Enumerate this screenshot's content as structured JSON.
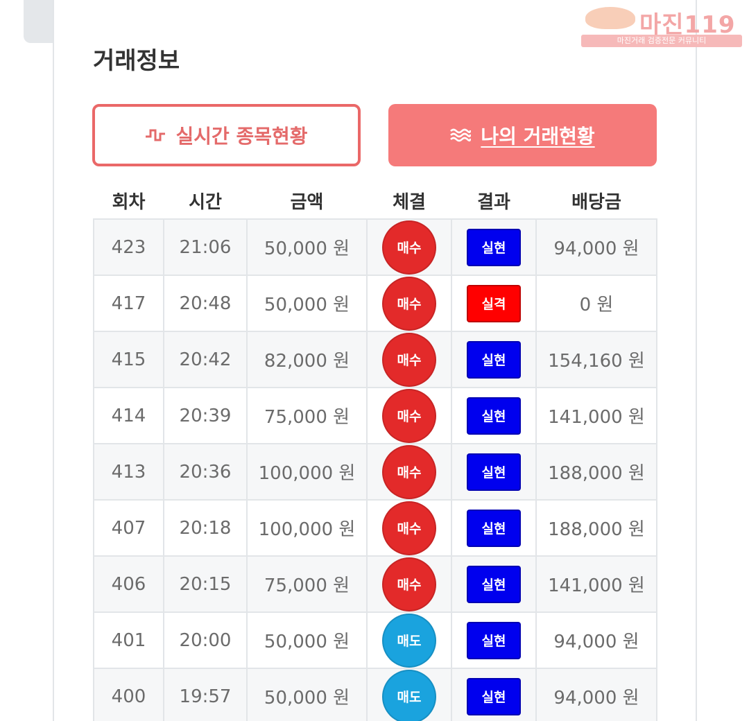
{
  "watermark": {
    "brand": "마진119",
    "subtitle": "마진거래 검증전문 커뮤니티"
  },
  "title": "거래정보",
  "buttons": {
    "realtime": {
      "label": "실시간 종목현황",
      "icon": "pulse-icon"
    },
    "mine": {
      "label": "나의 거래현황",
      "icon": "waves-icon"
    }
  },
  "table": {
    "headers": [
      "회차",
      "시간",
      "금액",
      "체결",
      "결과",
      "배당금"
    ],
    "rows": [
      {
        "round": "423",
        "time": "21:06",
        "amount": "50,000 원",
        "trade": "매수",
        "result": "실현",
        "payout": "94,000 원"
      },
      {
        "round": "417",
        "time": "20:48",
        "amount": "50,000 원",
        "trade": "매수",
        "result": "실격",
        "payout": "0 원"
      },
      {
        "round": "415",
        "time": "20:42",
        "amount": "82,000 원",
        "trade": "매수",
        "result": "실현",
        "payout": "154,160 원"
      },
      {
        "round": "414",
        "time": "20:39",
        "amount": "75,000 원",
        "trade": "매수",
        "result": "실현",
        "payout": "141,000 원"
      },
      {
        "round": "413",
        "time": "20:36",
        "amount": "100,000 원",
        "trade": "매수",
        "result": "실현",
        "payout": "188,000 원"
      },
      {
        "round": "407",
        "time": "20:18",
        "amount": "100,000 원",
        "trade": "매수",
        "result": "실현",
        "payout": "188,000 원"
      },
      {
        "round": "406",
        "time": "20:15",
        "amount": "75,000 원",
        "trade": "매수",
        "result": "실현",
        "payout": "141,000 원"
      },
      {
        "round": "401",
        "time": "20:00",
        "amount": "50,000 원",
        "trade": "매도",
        "result": "실현",
        "payout": "94,000 원"
      },
      {
        "round": "400",
        "time": "19:57",
        "amount": "50,000 원",
        "trade": "매도",
        "result": "실현",
        "payout": "94,000 원"
      }
    ]
  },
  "colors": {
    "buy": "#e32a2a",
    "sell": "#1aa3de",
    "realized": "#0000ee",
    "disqualified": "#ff0000",
    "accent": "#f57a7a"
  }
}
